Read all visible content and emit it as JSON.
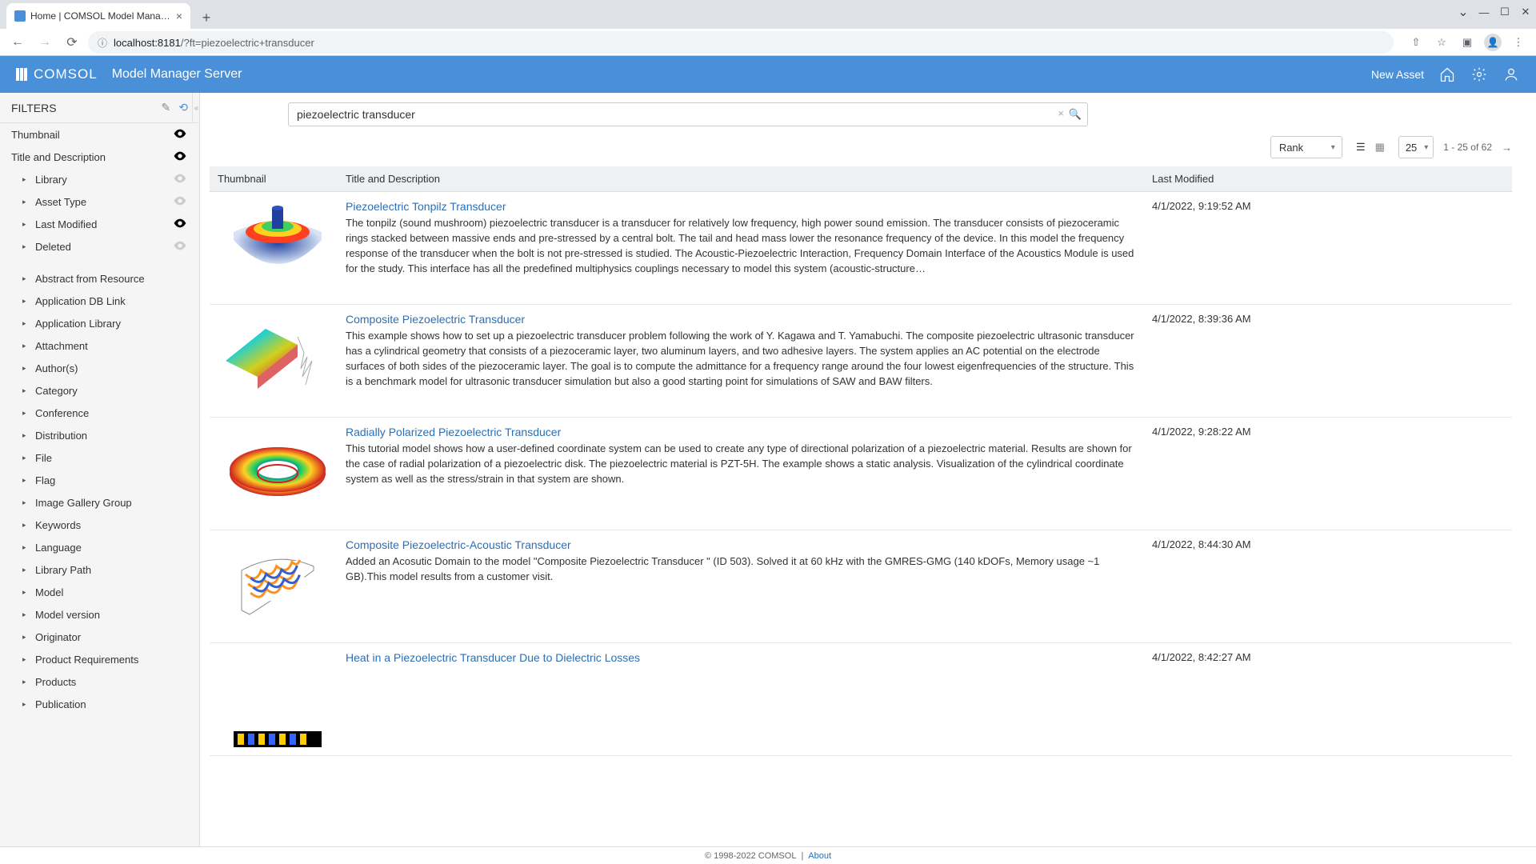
{
  "browser": {
    "tab_title": "Home | COMSOL Model Manage…",
    "url_host": "localhost:8181",
    "url_path": "/?ft=piezoelectric+transducer"
  },
  "header": {
    "brand": "COMSOL",
    "app_title": "Model Manager Server",
    "new_asset": "New Asset"
  },
  "sidebar": {
    "title": "FILTERS",
    "top": [
      {
        "label": "Thumbnail",
        "eye": "on"
      },
      {
        "label": "Title and Description",
        "eye": "on"
      }
    ],
    "primary": [
      {
        "label": "Library",
        "eye": "off"
      },
      {
        "label": "Asset Type",
        "eye": "off"
      },
      {
        "label": "Last Modified",
        "eye": "on"
      },
      {
        "label": "Deleted",
        "eye": "off"
      }
    ],
    "secondary": [
      "Abstract from Resource",
      "Application DB Link",
      "Application Library",
      "Attachment",
      "Author(s)",
      "Category",
      "Conference",
      "Distribution",
      "File",
      "Flag",
      "Image Gallery Group",
      "Keywords",
      "Language",
      "Library Path",
      "Model",
      "Model version",
      "Originator",
      "Product Requirements",
      "Products",
      "Publication"
    ]
  },
  "search": {
    "value": "piezoelectric transducer"
  },
  "toolbar": {
    "sort": "Rank",
    "page_size": "25",
    "pager": "1 - 25 of 62"
  },
  "columns": {
    "thumb": "Thumbnail",
    "title": "Title and Description",
    "mod": "Last Modified"
  },
  "results": [
    {
      "title": "Piezoelectric Tonpilz Transducer",
      "desc": "The tonpilz (sound mushroom) piezoelectric transducer is a transducer for relatively low frequency, high power sound emission. The transducer consists of piezoceramic rings stacked between massive ends and pre-stressed by a central bolt. The tail and head mass lower the resonance frequency of the device. In this model the frequency response of the transducer when the bolt is not pre-stressed is studied. The Acoustic-Piezoelectric Interaction, Frequency Domain Interface of the Acoustics Module is used for the study. This interface has all the predefined multiphysics couplings necessary to model this system (acoustic-structure…",
      "modified": "4/1/2022, 9:19:52 AM",
      "thumb": "tonpilz"
    },
    {
      "title": "Composite Piezoelectric Transducer",
      "desc": "This example shows how to set up a piezoelectric transducer problem following the work of Y. Kagawa and T. Yamabuchi. The composite piezoelectric ultrasonic transducer has a cylindrical geometry that consists of a piezoceramic layer, two aluminum layers, and two adhesive layers. The system applies an AC potential on the electrode surfaces of both sides of the piezoceramic layer. The goal is to compute the admittance for a frequency range around the four lowest eigenfrequencies of the structure. This is a benchmark model for ultrasonic transducer simulation but also a good starting point for simulations of SAW and BAW filters.",
      "modified": "4/1/2022, 8:39:36 AM",
      "thumb": "composite"
    },
    {
      "title": "Radially Polarized Piezoelectric Transducer",
      "desc": "This tutorial model shows how a user-defined coordinate system can be used to create any type of directional polarization of a piezoelectric material. Results are shown for the case of radial polarization of a piezoelectric disk. The piezoelectric material is PZT-5H. The example shows a static analysis. Visualization of the cylindrical coordinate system as well as the stress/strain in that system are shown.",
      "modified": "4/1/2022, 9:28:22 AM",
      "thumb": "radial"
    },
    {
      "title": "Composite Piezoelectric-Acoustic Transducer",
      "desc": "Added an Acosutic Domain to the model \"Composite Piezoelectric Transducer \" (ID 503). Solved it at 60 kHz with the GMRES-GMG (140 kDOFs, Memory usage ~1 GB).This model results from a customer visit.",
      "modified": "4/1/2022, 8:44:30 AM",
      "thumb": "acoustic"
    },
    {
      "title": "Heat in a Piezoelectric Transducer Due to Dielectric Losses",
      "desc": "",
      "modified": "4/1/2022, 8:42:27 AM",
      "thumb": "heat"
    }
  ],
  "footer": {
    "copyright": "© 1998-2022 COMSOL",
    "about": "About"
  }
}
